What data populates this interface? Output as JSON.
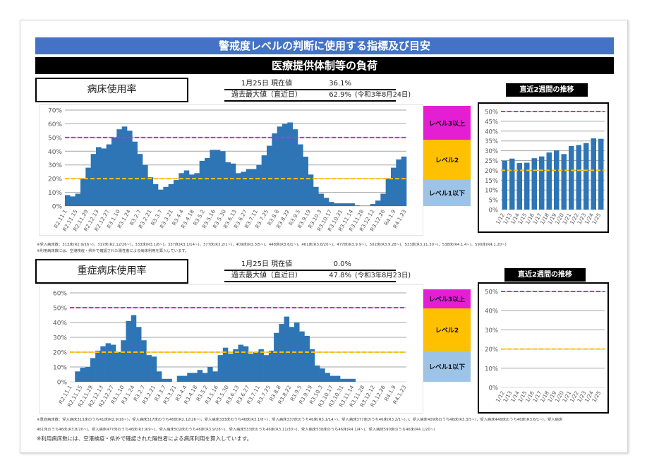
{
  "header": {
    "title": "警戒度レベルの判断に使用する指標及び目安",
    "subtitle": "医療提供体制等の負荷"
  },
  "levels": {
    "level3": "レベル3以上",
    "level2": "レベル2",
    "level1": "レベル1以下"
  },
  "colors": {
    "bar": "#2E75B6",
    "level3_line": "#E31ED3",
    "level2_line": "#FFC000",
    "header_blue": "#4472C4"
  },
  "sections": [
    {
      "name": "病床使用率",
      "current_label": "1月25日 現在値",
      "current_value": "36.1%",
      "max_label": "過去最大値（直近日）",
      "max_value": "62.9%",
      "max_date": "(令和3年8月24日)",
      "recent_title": "直近2週間の推移",
      "notes": [
        "※受入病床数：313床(R2.9/16~)，317床(R2.12/26~)，333床(R3.1/8~)，337床(R3.1/14~)，377床(R3.2/1~)，409床(R3.3/5~)、448床(R3.6/1~)，461床(R3.8/20~)、477床(R3.9.9~)、502床(R3.9.28~)、533床(R3.11.30~)、538床(R4.1.4~)、590床(R4.1.20~)",
        "※利用病床数には、空港検疫・県外で確認された陽性者による病床利用を算入しています。"
      ]
    },
    {
      "name": "重症病床使用率",
      "current_label": "1月25日 現在値",
      "current_value": "0.0%",
      "max_label": "過去最大値（直近日）",
      "max_value": "47.8%",
      "max_date": "(令和3年8月23日)",
      "recent_title": "直近2週間の推移",
      "notes": [
        "※重症病床数：受入病床313床のうち41床(R2.9/16~)，受入病床317床のうち46床(R2.12/26~)，受入病床333床のうち46床(R3.1/8~)，受入病床337床のうち46床(R3.1/14~)，受入病床377床のうち46床(R3.2/1~)，)，受入病床409床のうち46床(R3.3/5~)，受入病床448床のうち46床(R3.6/1~)，受入病床",
        "461床のうち46床(R3.8/20~)、受入病床477床のうち46床(R3.9/9~)、受入病床502床のうち46床(R3.9/28~)、受入病床533床のうち46床(R3.11/30~)、受入病床538床のうち46床(R4.1/4~)、受入病床590床のうち46床(R4.1/20~)",
        "※利用病床数には、空港検疫・県外で確認された陽性者による病床利用を算入しています。"
      ]
    }
  ],
  "chart_data": [
    {
      "type": "bar",
      "title": "病床使用率",
      "ylim": [
        0,
        70
      ],
      "ystep": 10,
      "ref_lines": [
        20,
        50
      ],
      "x_tick_labels": [
        "R2.11.1",
        "R2.11.15",
        "R2.11.29",
        "R2.12.13",
        "R2.12.27",
        "R3.1.10",
        "R3.1.24",
        "R3.2.7",
        "R3.2.21",
        "R3.3.7",
        "R3.3.21",
        "R3.4.4",
        "R3.4.18",
        "R3.5.2",
        "R3.5.16",
        "R3.5.30",
        "R3.6.13",
        "R3.6.27",
        "R3.7.11",
        "R3.7.25",
        "R3.8.8",
        "R3.8.22",
        "R3.9.5",
        "R3.9.19",
        "R3.10.3",
        "R3.10.17",
        "R3.10.31",
        "R3.11.14",
        "R3.11.28",
        "R3.12.12",
        "R3.12.26",
        "R4.1.9",
        "R4.1.23"
      ],
      "values": [
        8,
        7,
        9,
        20,
        28,
        38,
        43,
        42,
        45,
        50,
        56,
        58,
        55,
        47,
        38,
        30,
        21,
        16,
        12,
        14,
        16,
        19,
        24,
        26,
        23,
        24,
        33,
        35,
        41,
        41,
        40,
        32,
        31,
        24,
        25,
        27,
        27,
        30,
        37,
        44,
        53,
        58,
        60,
        61,
        56,
        45,
        36,
        23,
        14,
        9,
        6,
        3,
        2,
        2,
        2,
        2,
        0.5,
        0.3,
        0.3,
        1.5,
        4,
        9,
        20,
        28,
        34,
        36.1
      ]
    },
    {
      "type": "bar",
      "title": "病床使用率 直近2週間の推移",
      "ylim": [
        0,
        50
      ],
      "ystep": 5,
      "ref_lines": [
        20,
        50
      ],
      "categories": [
        "1/12",
        "1/13",
        "1/14",
        "1/15",
        "1/16",
        "1/17",
        "1/18",
        "1/19",
        "1/20",
        "1/21",
        "1/22",
        "1/23",
        "1/24",
        "1/25"
      ],
      "values": [
        24.9,
        26.0,
        23.7,
        23.9,
        26.2,
        27.1,
        29.1,
        30.2,
        28.3,
        32.4,
        32.9,
        33.9,
        36.3,
        36.1
      ]
    },
    {
      "type": "bar",
      "title": "重症病床使用率",
      "ylim": [
        0,
        60
      ],
      "ystep": 10,
      "ref_lines": [
        20,
        50
      ],
      "x_tick_labels": [
        "R2.11.1",
        "R2.11.15",
        "R2.11.29",
        "R2.12.13",
        "R2.12.27",
        "R3.1.10",
        "R3.1.24",
        "R3.2.7",
        "R3.2.21",
        "R3.3.7",
        "R3.3.21",
        "R3.4.4",
        "R3.4.18",
        "R3.5.2",
        "R3.5.16",
        "R3.5.30",
        "R3.6.13",
        "R3.6.27",
        "R3.7.11",
        "R3.7.25",
        "R3.8.8",
        "R3.8.22",
        "R3.9.5",
        "R3.9.19",
        "R3.10.3",
        "R3.10.17",
        "R3.10.31",
        "R3.11.14",
        "R3.11.28",
        "R3.12.12",
        "R3.12.26",
        "R4.1.9",
        "R4.1.23"
      ],
      "values": [
        0,
        7,
        9.5,
        10,
        16,
        21,
        24,
        26,
        25,
        20,
        28,
        41,
        45,
        37,
        28,
        18,
        17,
        7,
        2,
        2,
        0,
        4,
        4,
        6,
        6,
        8,
        6,
        10,
        7,
        18,
        23,
        19,
        22,
        25,
        24,
        19,
        20,
        22,
        18,
        21,
        33,
        39,
        44,
        37,
        40,
        34,
        31,
        22,
        11,
        9,
        6,
        4,
        4,
        2,
        2,
        2,
        0,
        0,
        0,
        0,
        0,
        0,
        0,
        0,
        0,
        0
      ]
    },
    {
      "type": "bar",
      "title": "重症病床使用率 直近2週間の推移",
      "ylim": [
        0,
        50
      ],
      "ystep": 10,
      "ref_lines": [
        20,
        50
      ],
      "categories": [
        "1/12",
        "1/13",
        "1/14",
        "1/15",
        "1/16",
        "1/17",
        "1/18",
        "1/19",
        "1/20",
        "1/21",
        "1/22",
        "1/23",
        "1/24",
        "1/25"
      ],
      "values": [
        0,
        0,
        0,
        0,
        0,
        0,
        0,
        0,
        0,
        0,
        0,
        0,
        0,
        0
      ]
    }
  ]
}
